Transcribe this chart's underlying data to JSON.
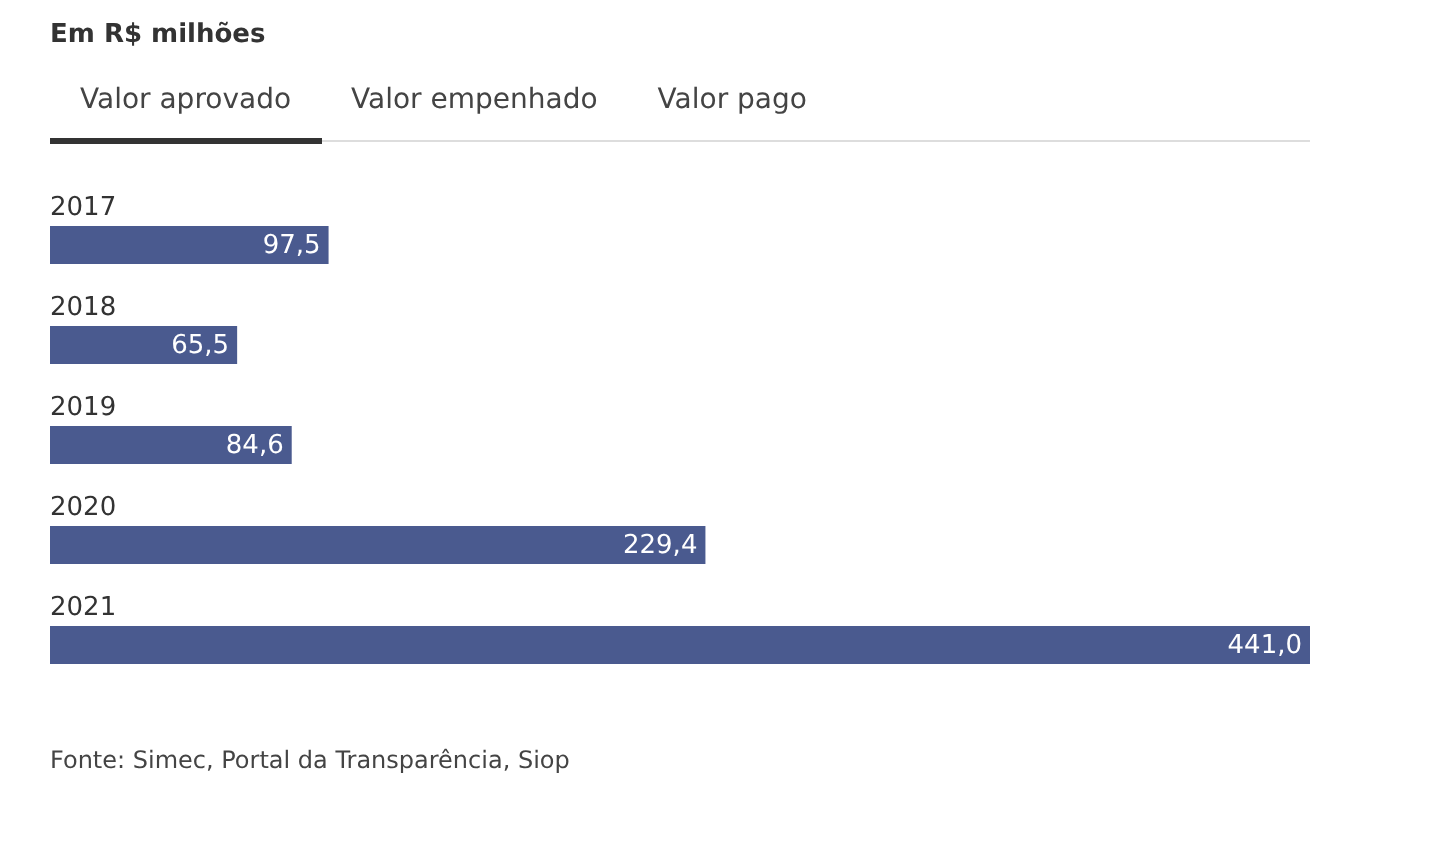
{
  "chart_data": {
    "type": "bar",
    "orientation": "horizontal",
    "title": "Em R$ milhões",
    "categories": [
      "2017",
      "2018",
      "2019",
      "2020",
      "2021"
    ],
    "values": [
      97.5,
      65.5,
      84.6,
      229.4,
      441.0
    ],
    "color": "#4a5a8f",
    "value_labels": [
      "97,5",
      "65,5",
      "84,6",
      "229,4",
      "441,0"
    ],
    "annotations": [
      "Valor aprovado",
      "Valor empenhado",
      "Valor pago",
      "Fonte: Simec, Portal da Transparência, Siop"
    ]
  }
}
